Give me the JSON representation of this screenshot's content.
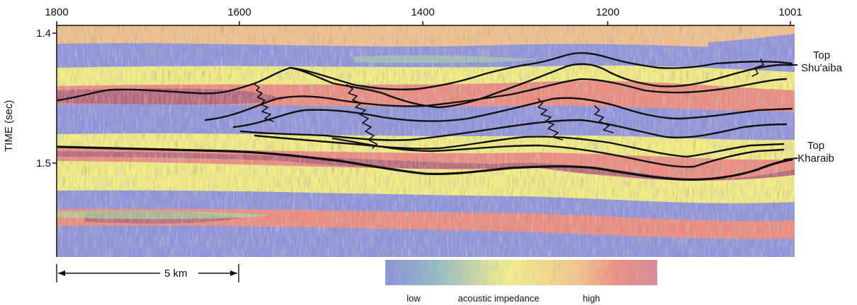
{
  "x_axis": {
    "ticks": [
      "1800",
      "1600",
      "1400",
      "1200",
      "1001"
    ]
  },
  "y_axis": {
    "label": "TIME (sec)",
    "ticks": [
      "1.4",
      "1.5"
    ]
  },
  "horizons": [
    {
      "name": "Top Shu'aiba",
      "line1": "Top",
      "line2": "Shu'aiba"
    },
    {
      "name": "Top Kharaib",
      "line1": "Top",
      "line2": "Kharaib"
    }
  ],
  "scale_bar": {
    "label": "5 km"
  },
  "colorbar": {
    "low": "low",
    "title": "acoustic impedance",
    "high": "high",
    "colors": [
      "#8a8fd8",
      "#8fb8c8",
      "#f4f08a",
      "#f6c88a",
      "#ef8c80",
      "#d98a9a"
    ]
  },
  "palette": {
    "blue": "#8f92dd",
    "green": "#a8d9a0",
    "yellow": "#f4ee80",
    "orange": "#f3b68a",
    "red": "#ee8a7d",
    "magenta": "#a85a75"
  }
}
